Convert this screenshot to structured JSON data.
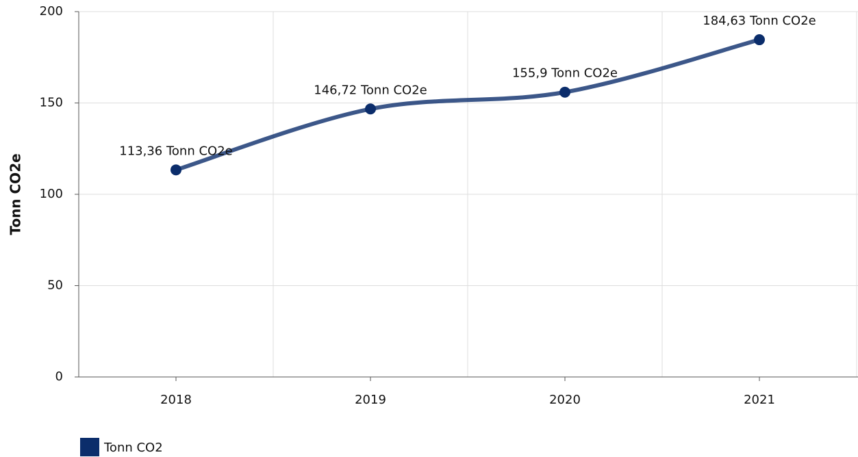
{
  "chart_data": {
    "type": "line",
    "y_label": "Tonn CO2e",
    "categories": [
      "2018",
      "2019",
      "2020",
      "2021"
    ],
    "series": [
      {
        "name": "Tonn CO2",
        "color": "#0b2d6b",
        "values": [
          113.36,
          146.72,
          155.9,
          184.63
        ],
        "value_labels": [
          "113,36 Tonn CO2e",
          "146,72 Tonn CO2e",
          "155,9 Tonn CO2e",
          "184,63 Tonn CO2e"
        ]
      }
    ],
    "ylim": [
      0,
      200
    ],
    "yticks": [
      0,
      50,
      100,
      150,
      200
    ],
    "grid": true,
    "smooth": true,
    "legend": "bottom-left"
  }
}
